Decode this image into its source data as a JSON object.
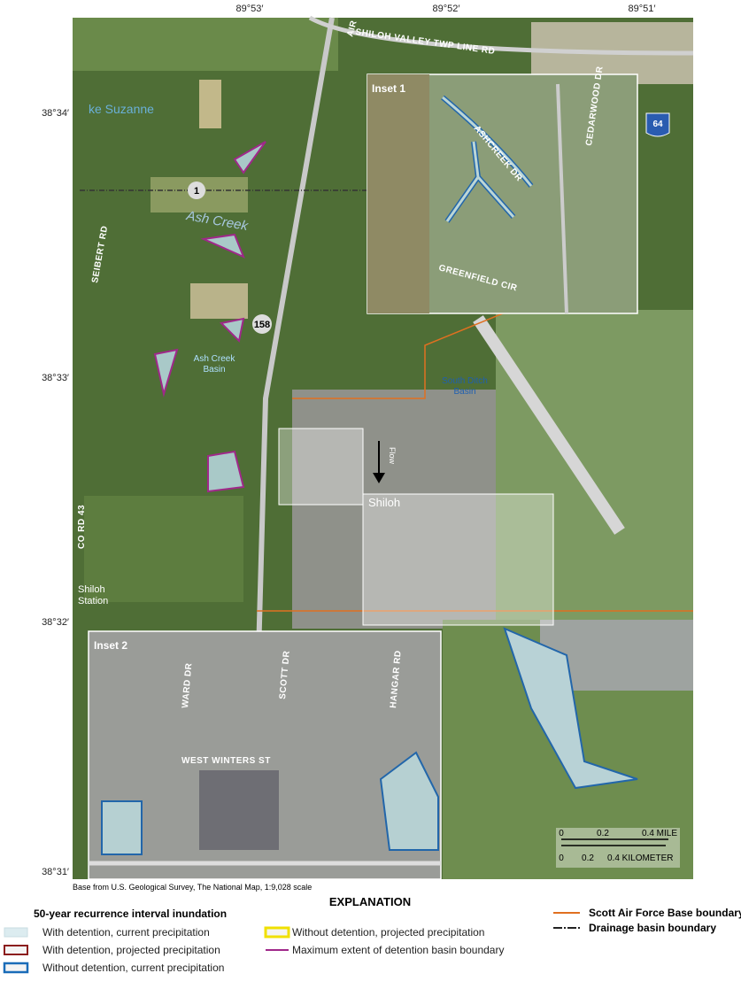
{
  "coordinates": {
    "longitude": [
      "89°53′",
      "89°52′",
      "89°51′"
    ],
    "latitude": [
      "38°34′",
      "38°33′",
      "38°32′",
      "38°31′"
    ]
  },
  "map_labels": {
    "road_north": "SHILOH VALLEY TWP LINE RD",
    "air": "AIR",
    "lake": "ke Suzanne",
    "route_1": "1",
    "ash_creek": "Ash Creek",
    "route_158": "158",
    "ash_creek_basin": "Ash Creek Basin",
    "south_ditch_basin": "South Ditch Basin",
    "flow": "Flow",
    "shiloh": "Shiloh",
    "shiloh_station": "Shiloh Station",
    "co_rd_43": "CO RD 43",
    "seibert_rd": "SEIBERT RD",
    "interstate": "64"
  },
  "inset_1": {
    "title": "Inset 1",
    "streets": [
      "ASHCREEK DR",
      "CEDARWOOD DR",
      "GREENFIELD CIR"
    ]
  },
  "inset_2": {
    "title": "Inset 2",
    "streets": [
      "WARD DR",
      "SCOTT DR",
      "HANGAR RD",
      "WEST WINTERS ST"
    ]
  },
  "scale_bar": {
    "miles": [
      "0",
      "0.2",
      "0.4 MILE"
    ],
    "kilometers": [
      "0",
      "0.2",
      "0.4 KILOMETER"
    ]
  },
  "credit": "Base from U.S. Geological Survey, The National Map, 1:9,028 scale",
  "legend": {
    "title": "EXPLANATION",
    "subtitle": "50-year recurrence interval inundation",
    "items": [
      "With detention, current precipitation",
      "With detention, projected precipitation",
      "Without detention, current precipitation",
      "Without detention, projected precipitation",
      "Maximum extent of detention basin boundary",
      "Scott Air Force Base boundary",
      "Drainage basin boundary"
    ]
  }
}
